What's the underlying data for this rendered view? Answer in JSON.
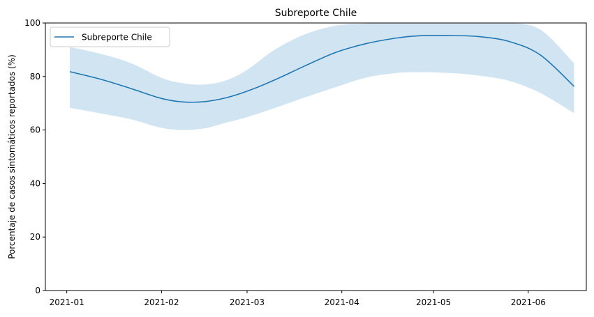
{
  "chart_data": {
    "type": "area",
    "title": "Subreporte Chile",
    "xlabel": "",
    "ylabel": "Porcentaje de casos sintomáticos reportados (%)",
    "ylim": [
      0,
      100
    ],
    "xlim": [
      "2020-12-25",
      "2021-06-20"
    ],
    "x_ticks": [
      "2021-01",
      "2021-02",
      "2021-03",
      "2021-04",
      "2021-05",
      "2021-06"
    ],
    "y_ticks": [
      0,
      20,
      40,
      60,
      80,
      100
    ],
    "legend_position": "top-left",
    "grid": false,
    "colors": {
      "line": "#1f77b4",
      "band": "#d1e4f1",
      "frame": "#000000"
    },
    "series": [
      {
        "name": "Subreporte Chile",
        "x": [
          "2021-01-02",
          "2021-01-12",
          "2021-01-22",
          "2021-02-01",
          "2021-02-08",
          "2021-02-15",
          "2021-02-22",
          "2021-03-01",
          "2021-03-10",
          "2021-03-20",
          "2021-03-30",
          "2021-04-09",
          "2021-04-19",
          "2021-04-26",
          "2021-05-06",
          "2021-05-16",
          "2021-05-26",
          "2021-06-05",
          "2021-06-16"
        ],
        "y": [
          81.8,
          79.0,
          75.5,
          71.8,
          70.5,
          70.6,
          72.0,
          74.5,
          78.7,
          84.0,
          89.0,
          92.3,
          94.4,
          95.2,
          95.3,
          94.9,
          93.0,
          88.0,
          76.3
        ],
        "lower": [
          68.3,
          66.2,
          64.0,
          60.8,
          60.0,
          60.6,
          62.7,
          64.8,
          68.2,
          72.2,
          76.0,
          79.6,
          81.3,
          81.6,
          81.3,
          80.3,
          78.3,
          73.8,
          66.3
        ],
        "upper": [
          91.0,
          88.5,
          85.0,
          79.5,
          77.5,
          77.0,
          78.5,
          82.5,
          90.0,
          95.8,
          99.0,
          99.8,
          100,
          100,
          100,
          100,
          100,
          97.5,
          85.0
        ]
      }
    ]
  }
}
